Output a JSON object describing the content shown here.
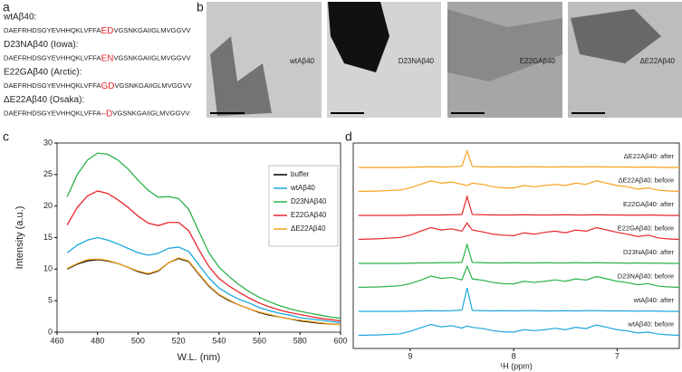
{
  "panel_a": {
    "label": "a",
    "sequences": [
      {
        "name": "wtAβ40:",
        "color": "#1ca7dd",
        "prefix": "DAEFRHDSGYEVHHQKLVFFA",
        "mutation": "ED",
        "suffix": "VGSNKGAIIGLMVGGVV"
      },
      {
        "name": "D23NAβ40 (Iowa):",
        "color": "#2ab24a",
        "prefix": "DAEFRHDSGYEVHHQKLVFFA",
        "mutation": "EN",
        "suffix": "VGSNKGAIIGLMVGGVV"
      },
      {
        "name": "E22GAβ40 (Arctic):",
        "color": "#e8262b",
        "prefix": "DAEFRHDSGYEVHHQKLVFFA",
        "mutation": "GD",
        "suffix": "VGSNKGAIIGLMVGGVV"
      },
      {
        "name": "ΔE22Aβ40 (Osaka):",
        "color": "#f7a21e",
        "prefix": "DAEFRHDSGYEVHHQKLVFFA",
        "mutation": "–D",
        "suffix": "VGSNKGAIIGLMVGGVV"
      }
    ],
    "mutation_color": "#e8262b"
  },
  "panel_b": {
    "label": "b",
    "images": [
      {
        "caption": "wtAβ40"
      },
      {
        "caption": "D23NAβ40"
      },
      {
        "caption": "E22GAβ40"
      },
      {
        "caption": "ΔE22Aβ40"
      }
    ]
  },
  "chart_data": [
    {
      "type": "line",
      "label": "c",
      "xlabel": "W.L. (nm)",
      "ylabel": "Intensity (a.u.)",
      "xlim": [
        460,
        600
      ],
      "xticks": [
        460,
        480,
        500,
        520,
        540,
        560,
        580,
        600
      ],
      "ylim": [
        0,
        30
      ],
      "yticks": [
        0,
        5,
        10,
        15,
        20,
        25,
        30
      ],
      "legend": "upper right",
      "x": [
        465,
        470,
        475,
        480,
        485,
        490,
        495,
        500,
        505,
        510,
        515,
        520,
        525,
        530,
        535,
        540,
        545,
        550,
        555,
        560,
        565,
        570,
        575,
        580,
        585,
        590,
        595,
        600
      ],
      "series": [
        {
          "name": "buffer",
          "color": "#000000",
          "values": [
            10,
            10.8,
            11.3,
            11.5,
            11.3,
            10.9,
            10.3,
            9.6,
            9.2,
            9.7,
            11,
            11.7,
            11.2,
            9.2,
            7.3,
            5.9,
            5,
            4.3,
            3.7,
            3.1,
            2.7,
            2.4,
            2.1,
            1.8,
            1.6,
            1.4,
            1.3,
            1.2
          ]
        },
        {
          "name": "wtAβ40",
          "color": "#1ca7dd",
          "values": [
            12.6,
            13.8,
            14.6,
            15,
            14.6,
            14,
            13.3,
            12.6,
            12.2,
            12.5,
            13.3,
            13.5,
            12.8,
            10.7,
            8.6,
            7,
            6,
            5.2,
            4.6,
            3.9,
            3.4,
            3,
            2.7,
            2.3,
            2.1,
            1.9,
            1.7,
            1.5
          ]
        },
        {
          "name": "D23NAβ40",
          "color": "#2ab24a",
          "values": [
            21.5,
            25,
            27.3,
            28.4,
            28.2,
            27.3,
            25.9,
            24.1,
            22.5,
            21.4,
            21.5,
            21.2,
            19.5,
            16,
            12.6,
            10.3,
            8.8,
            7.5,
            6.4,
            5.5,
            4.8,
            4.2,
            3.7,
            3.3,
            3,
            2.7,
            2.4,
            2.2
          ]
        },
        {
          "name": "E22GAβ40",
          "color": "#e8262b",
          "values": [
            17,
            19.8,
            21.6,
            22.4,
            22,
            21,
            19.8,
            18.4,
            17.3,
            16.9,
            17.4,
            17.4,
            16.1,
            13.1,
            10.4,
            8.5,
            7.3,
            6.3,
            5.4,
            4.6,
            4,
            3.5,
            3.1,
            2.8,
            2.5,
            2.2,
            2,
            1.8
          ]
        },
        {
          "name": "ΔE22Aβ40",
          "color": "#f7a21e",
          "values": [
            10.1,
            10.9,
            11.5,
            11.6,
            11.4,
            10.9,
            10.3,
            9.7,
            9.3,
            9.8,
            11,
            11.8,
            11.3,
            9.3,
            7.4,
            6,
            5.1,
            4.3,
            3.7,
            3.2,
            2.8,
            2.4,
            2.1,
            1.9,
            1.7,
            1.5,
            1.3,
            1.2
          ]
        }
      ]
    },
    {
      "type": "stacked-spectra",
      "label": "d",
      "xlabel": "¹H (ppm)",
      "xlim": [
        9.55,
        6.4
      ],
      "xticks": [
        9,
        8,
        7
      ],
      "x": [
        9.5,
        9.3,
        9.1,
        9.0,
        8.9,
        8.8,
        8.7,
        8.6,
        8.5,
        8.45,
        8.4,
        8.3,
        8.2,
        8.1,
        8.0,
        7.9,
        7.8,
        7.7,
        7.6,
        7.5,
        7.4,
        7.3,
        7.2,
        7.1,
        7.0,
        6.9,
        6.8,
        6.7,
        6.6,
        6.5,
        6.4
      ],
      "series": [
        {
          "name": "ΔE22Aβ40: after",
          "color": "#f7a21e",
          "values": [
            0,
            0,
            0,
            0.1,
            0.2,
            0.3,
            0.2,
            0.3,
            0.5,
            7,
            0.4,
            0.3,
            0.2,
            0.3,
            0.2,
            0.3,
            0.3,
            0.2,
            0.2,
            0.3,
            0.2,
            0.3,
            0.3,
            0.2,
            0.2,
            0.2,
            0.1,
            0.2,
            0.1,
            0,
            0
          ]
        },
        {
          "name": "ΔE22Aβ40: before",
          "color": "#f7a21e",
          "values": [
            0,
            0.2,
            0.6,
            1.5,
            3,
            4.5,
            3.5,
            4,
            3,
            2.5,
            3.5,
            3,
            2,
            1.5,
            1.5,
            2.5,
            2,
            2.5,
            3,
            2.5,
            3.5,
            3,
            4.5,
            3.5,
            2.5,
            2,
            1,
            1.5,
            0.5,
            0.2,
            0
          ]
        },
        {
          "name": "E22GAβ40: after",
          "color": "#e8262b",
          "values": [
            0,
            0,
            0,
            0.1,
            0.2,
            0.2,
            0.2,
            0.3,
            0.4,
            8,
            0.4,
            0.3,
            0.2,
            0.2,
            0.2,
            0.3,
            0.2,
            0.2,
            0.2,
            0.3,
            0.2,
            0.2,
            0.3,
            0.2,
            0.2,
            0.1,
            0.1,
            0.2,
            0.1,
            0,
            0
          ]
        },
        {
          "name": "E22GAβ40: before",
          "color": "#e8262b",
          "values": [
            0,
            0.3,
            0.8,
            1.8,
            3.5,
            5,
            4,
            4.5,
            3.5,
            7,
            4,
            3.2,
            2.2,
            1.8,
            1.6,
            2.8,
            2.2,
            3,
            3.5,
            2.8,
            4,
            3.5,
            5,
            4,
            3,
            2.2,
            1.2,
            1.8,
            0.6,
            0.2,
            0
          ]
        },
        {
          "name": "D23NAβ40: after",
          "color": "#2ab24a",
          "values": [
            0,
            0,
            0,
            0.1,
            0.2,
            0.2,
            0.3,
            0.3,
            0.4,
            8,
            0.4,
            0.3,
            0.2,
            0.2,
            0.3,
            0.2,
            0.2,
            0.3,
            0.2,
            0.2,
            0.3,
            0.2,
            0.3,
            0.2,
            0.2,
            0.1,
            0.2,
            0.1,
            0.1,
            0,
            0
          ]
        },
        {
          "name": "D23NAβ40: before",
          "color": "#2ab24a",
          "values": [
            0,
            0.2,
            0.7,
            1.6,
            3,
            4.8,
            3.8,
            4.2,
            3.2,
            9,
            3.6,
            3,
            2.1,
            1.6,
            1.5,
            2.6,
            2.1,
            2.6,
            3.2,
            2.6,
            3.6,
            3.1,
            4.6,
            3.6,
            2.6,
            2,
            1.1,
            1.6,
            0.5,
            0.2,
            0
          ]
        },
        {
          "name": "wtAβ40: after",
          "color": "#1ca7dd",
          "values": [
            0,
            0,
            0,
            0.1,
            0.2,
            0.3,
            0.2,
            0.3,
            0.5,
            10,
            0.4,
            0.3,
            0.2,
            0.3,
            0.2,
            0.3,
            0.3,
            0.2,
            0.2,
            0.3,
            0.2,
            0.3,
            0.3,
            0.2,
            0.2,
            0.2,
            0.1,
            0.2,
            0.1,
            0,
            0
          ]
        },
        {
          "name": "wtAβ40: before",
          "color": "#1ca7dd",
          "values": [
            0,
            0.2,
            0.6,
            1.7,
            3.2,
            4.6,
            3.6,
            4.1,
            3.1,
            4,
            3.4,
            2.9,
            2,
            1.5,
            1.4,
            2.4,
            2,
            2.4,
            3,
            2.4,
            3.4,
            2.9,
            4.4,
            3.4,
            2.4,
            1.9,
            1,
            1.4,
            0.5,
            0.2,
            0
          ]
        }
      ]
    }
  ]
}
